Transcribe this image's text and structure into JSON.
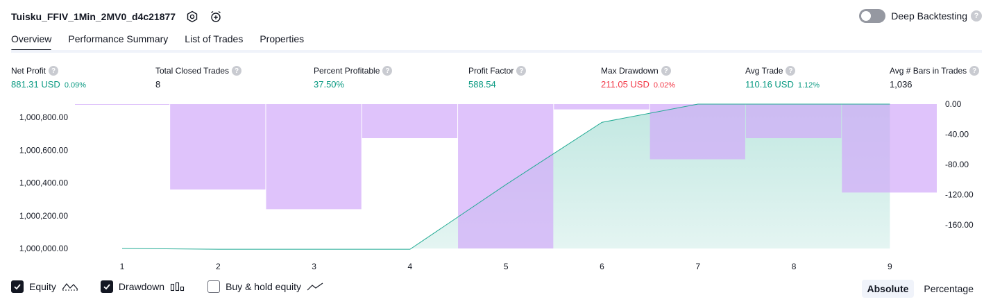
{
  "header": {
    "strategy_name": "Tuisku_FFIV_1Min_2MV0_d4c21877",
    "icons": [
      "settings-icon",
      "alarm-add-icon"
    ],
    "deep_backtesting_label": "Deep Backtesting",
    "deep_backtesting_on": false,
    "help_glyph": "?"
  },
  "tabs": [
    {
      "label": "Overview",
      "active": true
    },
    {
      "label": "Performance Summary",
      "active": false
    },
    {
      "label": "List of Trades",
      "active": false
    },
    {
      "label": "Properties",
      "active": false
    }
  ],
  "metrics": [
    {
      "label": "Net Profit",
      "value": "881.31 USD",
      "pct": "0.09%",
      "color": "#089981"
    },
    {
      "label": "Total Closed Trades",
      "value": "8",
      "pct": "",
      "color": "#131722"
    },
    {
      "label": "Percent Profitable",
      "value": "37.50%",
      "pct": "",
      "color": "#089981"
    },
    {
      "label": "Profit Factor",
      "value": "588.54",
      "pct": "",
      "color": "#089981"
    },
    {
      "label": "Max Drawdown",
      "value": "211.05 USD",
      "pct": "0.02%",
      "color": "#f23645"
    },
    {
      "label": "Avg Trade",
      "value": "110.16 USD",
      "pct": "1.12%",
      "color": "#089981"
    },
    {
      "label": "Avg # Bars in Trades",
      "value": "1,036",
      "pct": "",
      "color": "#131722"
    }
  ],
  "chart_data": {
    "type": "area",
    "x_ticks": [
      "1",
      "2",
      "3",
      "4",
      "5",
      "6",
      "7",
      "8",
      "9"
    ],
    "equity": {
      "x": [
        1,
        2,
        3,
        4,
        5,
        6,
        7,
        8,
        9
      ],
      "y": [
        1000000,
        999995,
        999995,
        999995,
        1000390,
        1000770,
        1000881,
        1000881,
        1000881
      ],
      "ylim": [
        1000000,
        1000881
      ],
      "y_ticks": [
        "1,000,000.00",
        "1,000,200.00",
        "1,000,400.00",
        "1,000,600.00",
        "1,000,800.00"
      ],
      "y_tick_values": [
        1000000,
        1000200,
        1000400,
        1000600,
        1000800
      ],
      "line_color": "#22ab94",
      "fill_color": "#22ab94"
    },
    "drawdown": {
      "x": [
        1,
        2,
        3,
        4,
        5,
        6,
        7,
        8,
        9
      ],
      "values": [
        0,
        -113,
        -139,
        -45,
        -191,
        -7,
        -73,
        -45,
        -117
      ],
      "ylim": [
        -191,
        0
      ],
      "y_ticks": [
        "0.00",
        "-40.00",
        "-80.00",
        "-120.00",
        "-160.00"
      ],
      "y_tick_values": [
        0,
        -40,
        -80,
        -120,
        -160
      ],
      "bar_color": "#d1a9fa"
    }
  },
  "legend": [
    {
      "label": "Equity",
      "checked": true,
      "icon": "equity-line-icon"
    },
    {
      "label": "Drawdown",
      "checked": true,
      "icon": "drawdown-bars-icon"
    },
    {
      "label": "Buy & hold equity",
      "checked": false,
      "icon": "buy-hold-line-icon"
    }
  ],
  "mode": {
    "absolute_label": "Absolute",
    "percentage_label": "Percentage",
    "selected": "absolute"
  }
}
